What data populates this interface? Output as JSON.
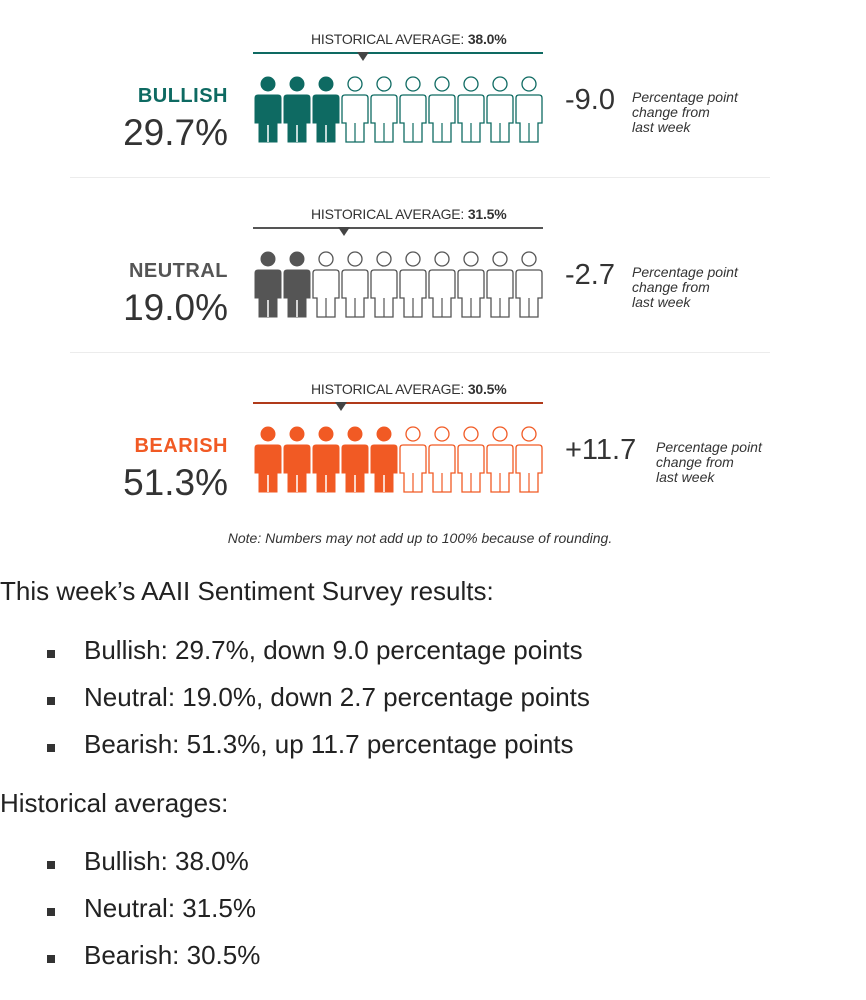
{
  "chart_data": {
    "type": "pictograph",
    "title": "AAII Sentiment Survey",
    "icons_per_row": 10,
    "series": [
      {
        "key": "bullish",
        "name": "BULLISH",
        "value": 29.7,
        "value_label": "29.7%",
        "filled_icons": 3,
        "historical_average": 38.0,
        "historical_label": "HISTORICAL AVERAGE:",
        "historical_value_label": "38.0%",
        "change": -9.0,
        "change_label": "-9.0",
        "change_note": [
          "Percentage point",
          "change from",
          "last week"
        ],
        "color": "#0e6a62"
      },
      {
        "key": "neutral",
        "name": "NEUTRAL",
        "value": 19.0,
        "value_label": "19.0%",
        "filled_icons": 2,
        "historical_average": 31.5,
        "historical_label": "HISTORICAL AVERAGE:",
        "historical_value_label": "31.5%",
        "change": -2.7,
        "change_label": "-2.7",
        "change_note": [
          "Percentage point",
          "change from",
          "last week"
        ],
        "color": "#555555"
      },
      {
        "key": "bearish",
        "name": "BEARISH",
        "value": 51.3,
        "value_label": "51.3%",
        "filled_icons": 5,
        "historical_average": 30.5,
        "historical_label": "HISTORICAL AVERAGE:",
        "historical_value_label": "30.5%",
        "change": 11.7,
        "change_label": "+11.7",
        "change_note": [
          "Percentage point",
          "change from",
          "last week"
        ],
        "color": "#f15a24"
      }
    ],
    "axis_range": [
      0,
      100
    ],
    "note": "Note: Numbers may not add up to 100% because of rounding."
  },
  "colors": {
    "outline_bullish": "#0e6a62",
    "outline_neutral": "#666666",
    "outline_bearish": "#f15a24",
    "hist_line_bullish": "#0e6a62",
    "hist_line_neutral": "#555555",
    "hist_line_bearish": "#b03a1a",
    "marker": "#444444"
  },
  "text": {
    "results_heading": "This week’s AAII Sentiment Survey results:",
    "results": [
      "Bullish: 29.7%, down 9.0 percentage points",
      "Neutral: 19.0%, down 2.7 percentage points",
      "Bearish: 51.3%, up 11.7 percentage points"
    ],
    "averages_heading": "Historical averages:",
    "averages": [
      "Bullish: 38.0%",
      "Neutral: 31.5%",
      "Bearish: 30.5%"
    ]
  }
}
